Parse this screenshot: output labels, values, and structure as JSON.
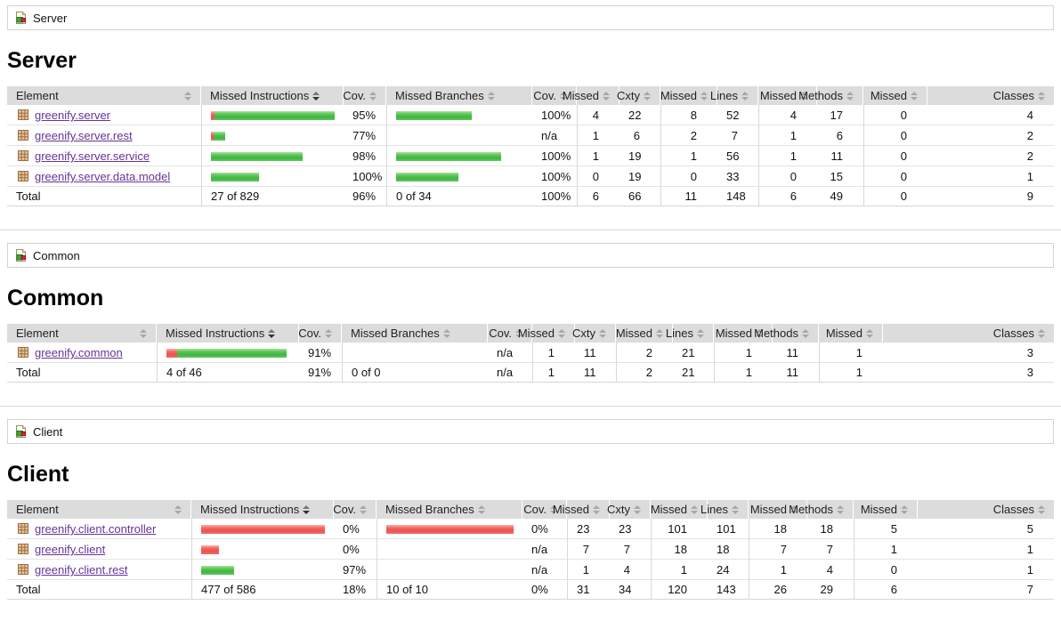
{
  "colors": {
    "covered_green": "#46b946",
    "missed_red": "#ef5a5a",
    "link_purple": "#663399",
    "header_bg": "#dcdcdc"
  },
  "icons": {
    "breadcrumb_icon": "coverage-report-icon",
    "package_icon": "package-icon",
    "sort_icon": "sort-arrows-icon"
  },
  "sort": {
    "column": "Missed Instructions",
    "direction": "desc"
  },
  "columns": [
    "Element",
    "Missed Instructions",
    "Cov.",
    "Missed Branches",
    "Cov.",
    "Missed",
    "Cxty",
    "Missed",
    "Lines",
    "Missed",
    "Methods",
    "Missed",
    "Classes"
  ],
  "sections": [
    {
      "breadcrumb": "Server",
      "title": "Server",
      "rows": [
        {
          "element": "greenify.server",
          "instr_bar": {
            "red": 4,
            "green": 137
          },
          "instr_cov": "95%",
          "branch_bar": {
            "red": 0,
            "green": 85
          },
          "branch_cov": "100%",
          "vals": [
            "4",
            "22",
            "8",
            "52",
            "4",
            "17",
            "0",
            "4"
          ]
        },
        {
          "element": "greenify.server.rest",
          "instr_bar": {
            "red": 3,
            "green": 13
          },
          "instr_cov": "77%",
          "branch_bar": {
            "red": 0,
            "green": 0
          },
          "branch_cov": "n/a",
          "vals": [
            "1",
            "6",
            "2",
            "7",
            "1",
            "6",
            "0",
            "2"
          ]
        },
        {
          "element": "greenify.server.service",
          "instr_bar": {
            "red": 0,
            "green": 103
          },
          "instr_cov": "98%",
          "branch_bar": {
            "red": 0,
            "green": 118
          },
          "branch_cov": "100%",
          "vals": [
            "1",
            "19",
            "1",
            "56",
            "1",
            "11",
            "0",
            "2"
          ]
        },
        {
          "element": "greenify.server.data.model",
          "instr_bar": {
            "red": 0,
            "green": 54
          },
          "instr_cov": "100%",
          "branch_bar": {
            "red": 0,
            "green": 70
          },
          "branch_cov": "100%",
          "vals": [
            "0",
            "19",
            "0",
            "33",
            "0",
            "15",
            "0",
            "1"
          ]
        }
      ],
      "total": {
        "label": "Total",
        "instr": "27 of 829",
        "instr_cov": "96%",
        "branch": "0 of 34",
        "branch_cov": "100%",
        "vals": [
          "6",
          "66",
          "11",
          "148",
          "6",
          "49",
          "0",
          "9"
        ]
      }
    },
    {
      "breadcrumb": "Common",
      "title": "Common",
      "rows": [
        {
          "element": "greenify.common",
          "instr_bar": {
            "red": 12,
            "green": 123
          },
          "instr_cov": "91%",
          "branch_bar": {
            "red": 0,
            "green": 0
          },
          "branch_cov": "n/a",
          "vals": [
            "1",
            "11",
            "2",
            "21",
            "1",
            "11",
            "1",
            "3"
          ]
        }
      ],
      "total": {
        "label": "Total",
        "instr": "4 of 46",
        "instr_cov": "91%",
        "branch": "0 of 0",
        "branch_cov": "n/a",
        "vals": [
          "1",
          "11",
          "2",
          "21",
          "1",
          "11",
          "1",
          "3"
        ]
      }
    },
    {
      "breadcrumb": "Client",
      "title": "Client",
      "rows": [
        {
          "element": "greenify.client.controller",
          "instr_bar": {
            "red": 143,
            "green": 0
          },
          "instr_cov": "0%",
          "branch_bar": {
            "red": 150,
            "green": 0
          },
          "branch_cov": "0%",
          "vals": [
            "23",
            "23",
            "101",
            "101",
            "18",
            "18",
            "5",
            "5"
          ]
        },
        {
          "element": "greenify.client",
          "instr_bar": {
            "red": 20,
            "green": 0
          },
          "instr_cov": "0%",
          "branch_bar": {
            "red": 0,
            "green": 0
          },
          "branch_cov": "n/a",
          "vals": [
            "7",
            "7",
            "18",
            "18",
            "7",
            "7",
            "1",
            "1"
          ]
        },
        {
          "element": "greenify.client.rest",
          "instr_bar": {
            "red": 0,
            "green": 37
          },
          "instr_cov": "97%",
          "branch_bar": {
            "red": 0,
            "green": 0
          },
          "branch_cov": "n/a",
          "vals": [
            "1",
            "4",
            "1",
            "24",
            "1",
            "4",
            "0",
            "1"
          ]
        }
      ],
      "total": {
        "label": "Total",
        "instr": "477 of 586",
        "instr_cov": "18%",
        "branch": "10 of 10",
        "branch_cov": "0%",
        "vals": [
          "31",
          "34",
          "120",
          "143",
          "26",
          "29",
          "6",
          "7"
        ]
      }
    }
  ]
}
